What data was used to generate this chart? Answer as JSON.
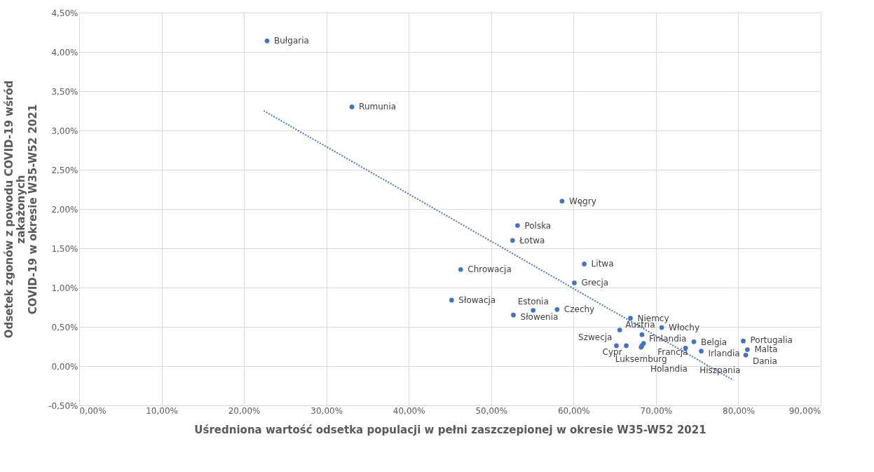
{
  "chart_data": {
    "type": "scatter",
    "xlabel": "Uśredniona wartość odsetka populacji w pełni zaszczepionej w okresie W35-W52 2021",
    "ylabel": "Odsetek zgonów z powodu COVID-19 wśród\nzakażonych\nCOVID-19 w okresie W35-W52 2021",
    "xlim": [
      0,
      90
    ],
    "ylim": [
      -0.5,
      4.5
    ],
    "xticks": [
      {
        "value": 0,
        "label": "0,00%"
      },
      {
        "value": 10,
        "label": "10,00%"
      },
      {
        "value": 20,
        "label": "20,00%"
      },
      {
        "value": 30,
        "label": "30,00%"
      },
      {
        "value": 40,
        "label": "40,00%"
      },
      {
        "value": 50,
        "label": "50,00%"
      },
      {
        "value": 60,
        "label": "60,00%"
      },
      {
        "value": 70,
        "label": "70,00%"
      },
      {
        "value": 80,
        "label": "80,00%"
      },
      {
        "value": 90,
        "label": "90,00%"
      }
    ],
    "yticks": [
      {
        "value": -0.5,
        "label": "-0,50%"
      },
      {
        "value": 0,
        "label": "0,00%"
      },
      {
        "value": 0.5,
        "label": "0,50%"
      },
      {
        "value": 1,
        "label": "1,00%"
      },
      {
        "value": 1.5,
        "label": "1,50%"
      },
      {
        "value": 2,
        "label": "2,00%"
      },
      {
        "value": 2.5,
        "label": "2,50%"
      },
      {
        "value": 3,
        "label": "3,00%"
      },
      {
        "value": 3.5,
        "label": "3,50%"
      },
      {
        "value": 4,
        "label": "4,00%"
      },
      {
        "value": 4.5,
        "label": "4,50%"
      }
    ],
    "grid": true,
    "series": [
      {
        "color": "#4472c4",
        "marker": "circle",
        "x": [
          22.8,
          33.1,
          58.6,
          53.2,
          52.6,
          46.3,
          45.2,
          52.7,
          55.1,
          58.0,
          61.3,
          60.1,
          66.9,
          70.7,
          65.6,
          68.3,
          65.2,
          66.4,
          68.5,
          68.2,
          68.3,
          73.6,
          74.6,
          75.5,
          80.6,
          81.1,
          80.9
        ],
        "values": [
          4.14,
          3.3,
          2.1,
          1.79,
          1.6,
          1.23,
          0.84,
          0.65,
          0.71,
          0.72,
          1.3,
          1.06,
          0.61,
          0.49,
          0.46,
          0.4,
          0.26,
          0.26,
          0.29,
          0.24,
          0.26,
          0.23,
          0.31,
          0.19,
          0.32,
          0.21,
          0.14
        ]
      },
      {
        "type": "line",
        "color": "#4472c4",
        "line_style": "dotted",
        "x": [
          22.4,
          79.4
        ],
        "values": [
          3.25,
          -0.18
        ]
      }
    ],
    "annotations": [
      {
        "text": "Bułgaria",
        "x": 22.8,
        "y": 4.14
      },
      {
        "text": "Rumunia",
        "x": 33.1,
        "y": 3.3
      },
      {
        "text": "Węgry",
        "x": 58.6,
        "y": 2.1
      },
      {
        "text": "Polska",
        "x": 53.2,
        "y": 1.79
      },
      {
        "text": "Łotwa",
        "x": 52.6,
        "y": 1.6
      },
      {
        "text": "Chrowacja",
        "x": 46.3,
        "y": 1.23
      },
      {
        "text": "Słowacja",
        "x": 45.2,
        "y": 0.84
      },
      {
        "text": "Słowenia",
        "x": 52.7,
        "y": 0.65
      },
      {
        "text": "Estonia",
        "x": 55.1,
        "y": 0.71
      },
      {
        "text": "Czechy",
        "x": 58.0,
        "y": 0.72
      },
      {
        "text": "Litwa",
        "x": 61.3,
        "y": 1.3
      },
      {
        "text": "Grecja",
        "x": 60.1,
        "y": 1.06
      },
      {
        "text": "Niemcy",
        "x": 66.9,
        "y": 0.61
      },
      {
        "text": "Włochy",
        "x": 70.7,
        "y": 0.49
      },
      {
        "text": "Austria",
        "x": 65.6,
        "y": 0.46
      },
      {
        "text": "Finlandia",
        "x": 68.3,
        "y": 0.4
      },
      {
        "text": "Szwecja",
        "x": 65.2,
        "y": 0.26
      },
      {
        "text": "Cypr",
        "x": 66.4,
        "y": 0.26
      },
      {
        "text": "Francja",
        "x": 68.5,
        "y": 0.29
      },
      {
        "text": "Luksemburg",
        "x": 68.2,
        "y": 0.24
      },
      {
        "text": "Holandia",
        "x": 68.3,
        "y": 0.26
      },
      {
        "text": "Hiszpania",
        "x": 73.6,
        "y": 0.23
      },
      {
        "text": "Belgia",
        "x": 74.6,
        "y": 0.31
      },
      {
        "text": "Irlandia",
        "x": 75.5,
        "y": 0.19
      },
      {
        "text": "Portugalia",
        "x": 80.6,
        "y": 0.32
      },
      {
        "text": "Malta",
        "x": 81.1,
        "y": 0.21
      },
      {
        "text": "Dania",
        "x": 80.9,
        "y": 0.14
      }
    ]
  }
}
